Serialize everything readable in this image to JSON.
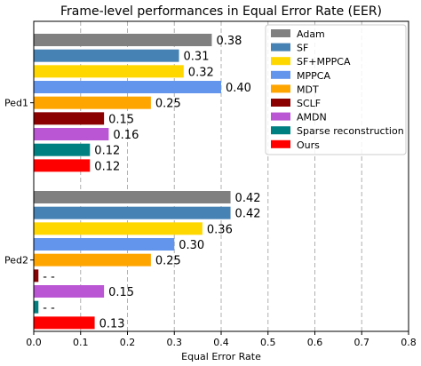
{
  "chart_data": {
    "type": "bar",
    "orientation": "horizontal",
    "title": "Frame-level performances in Equal Error Rate (EER)",
    "xlabel": "Equal Error Rate",
    "ylabel": "",
    "xlim": [
      0,
      0.8
    ],
    "xticks": [
      "0.0",
      "0.1",
      "0.2",
      "0.3",
      "0.4",
      "0.5",
      "0.6",
      "0.7",
      "0.8"
    ],
    "grid": "vertical-dashed",
    "legend_position": "top-right",
    "categories": [
      "Ped1",
      "Ped2"
    ],
    "series": [
      {
        "name": "Adam",
        "color": "#808080",
        "values": [
          0.38,
          0.42
        ],
        "labels": [
          "0.38",
          "0.42"
        ]
      },
      {
        "name": "SF",
        "color": "#4682b4",
        "values": [
          0.31,
          0.42
        ],
        "labels": [
          "0.31",
          "0.42"
        ]
      },
      {
        "name": "SF+MPPCA",
        "color": "#ffd700",
        "values": [
          0.32,
          0.36
        ],
        "labels": [
          "0.32",
          "0.36"
        ]
      },
      {
        "name": "MPPCA",
        "color": "#6495ed",
        "values": [
          0.4,
          0.3
        ],
        "labels": [
          "0.40",
          "0.30"
        ]
      },
      {
        "name": "MDT",
        "color": "#ffa500",
        "values": [
          0.25,
          0.25
        ],
        "labels": [
          "0.25",
          "0.25"
        ]
      },
      {
        "name": "SCLF",
        "color": "#8b0000",
        "values": [
          0.15,
          0.01
        ],
        "labels": [
          "0.15",
          "- -"
        ]
      },
      {
        "name": "AMDN",
        "color": "#ba55d3",
        "values": [
          0.16,
          0.15
        ],
        "labels": [
          "0.16",
          "0.15"
        ]
      },
      {
        "name": "Sparse reconstruction",
        "color": "#008080",
        "values": [
          0.12,
          0.01
        ],
        "labels": [
          "0.12",
          "- -"
        ]
      },
      {
        "name": "Ours",
        "color": "#ff0000",
        "values": [
          0.12,
          0.13
        ],
        "labels": [
          "0.12",
          "0.13"
        ]
      }
    ]
  }
}
